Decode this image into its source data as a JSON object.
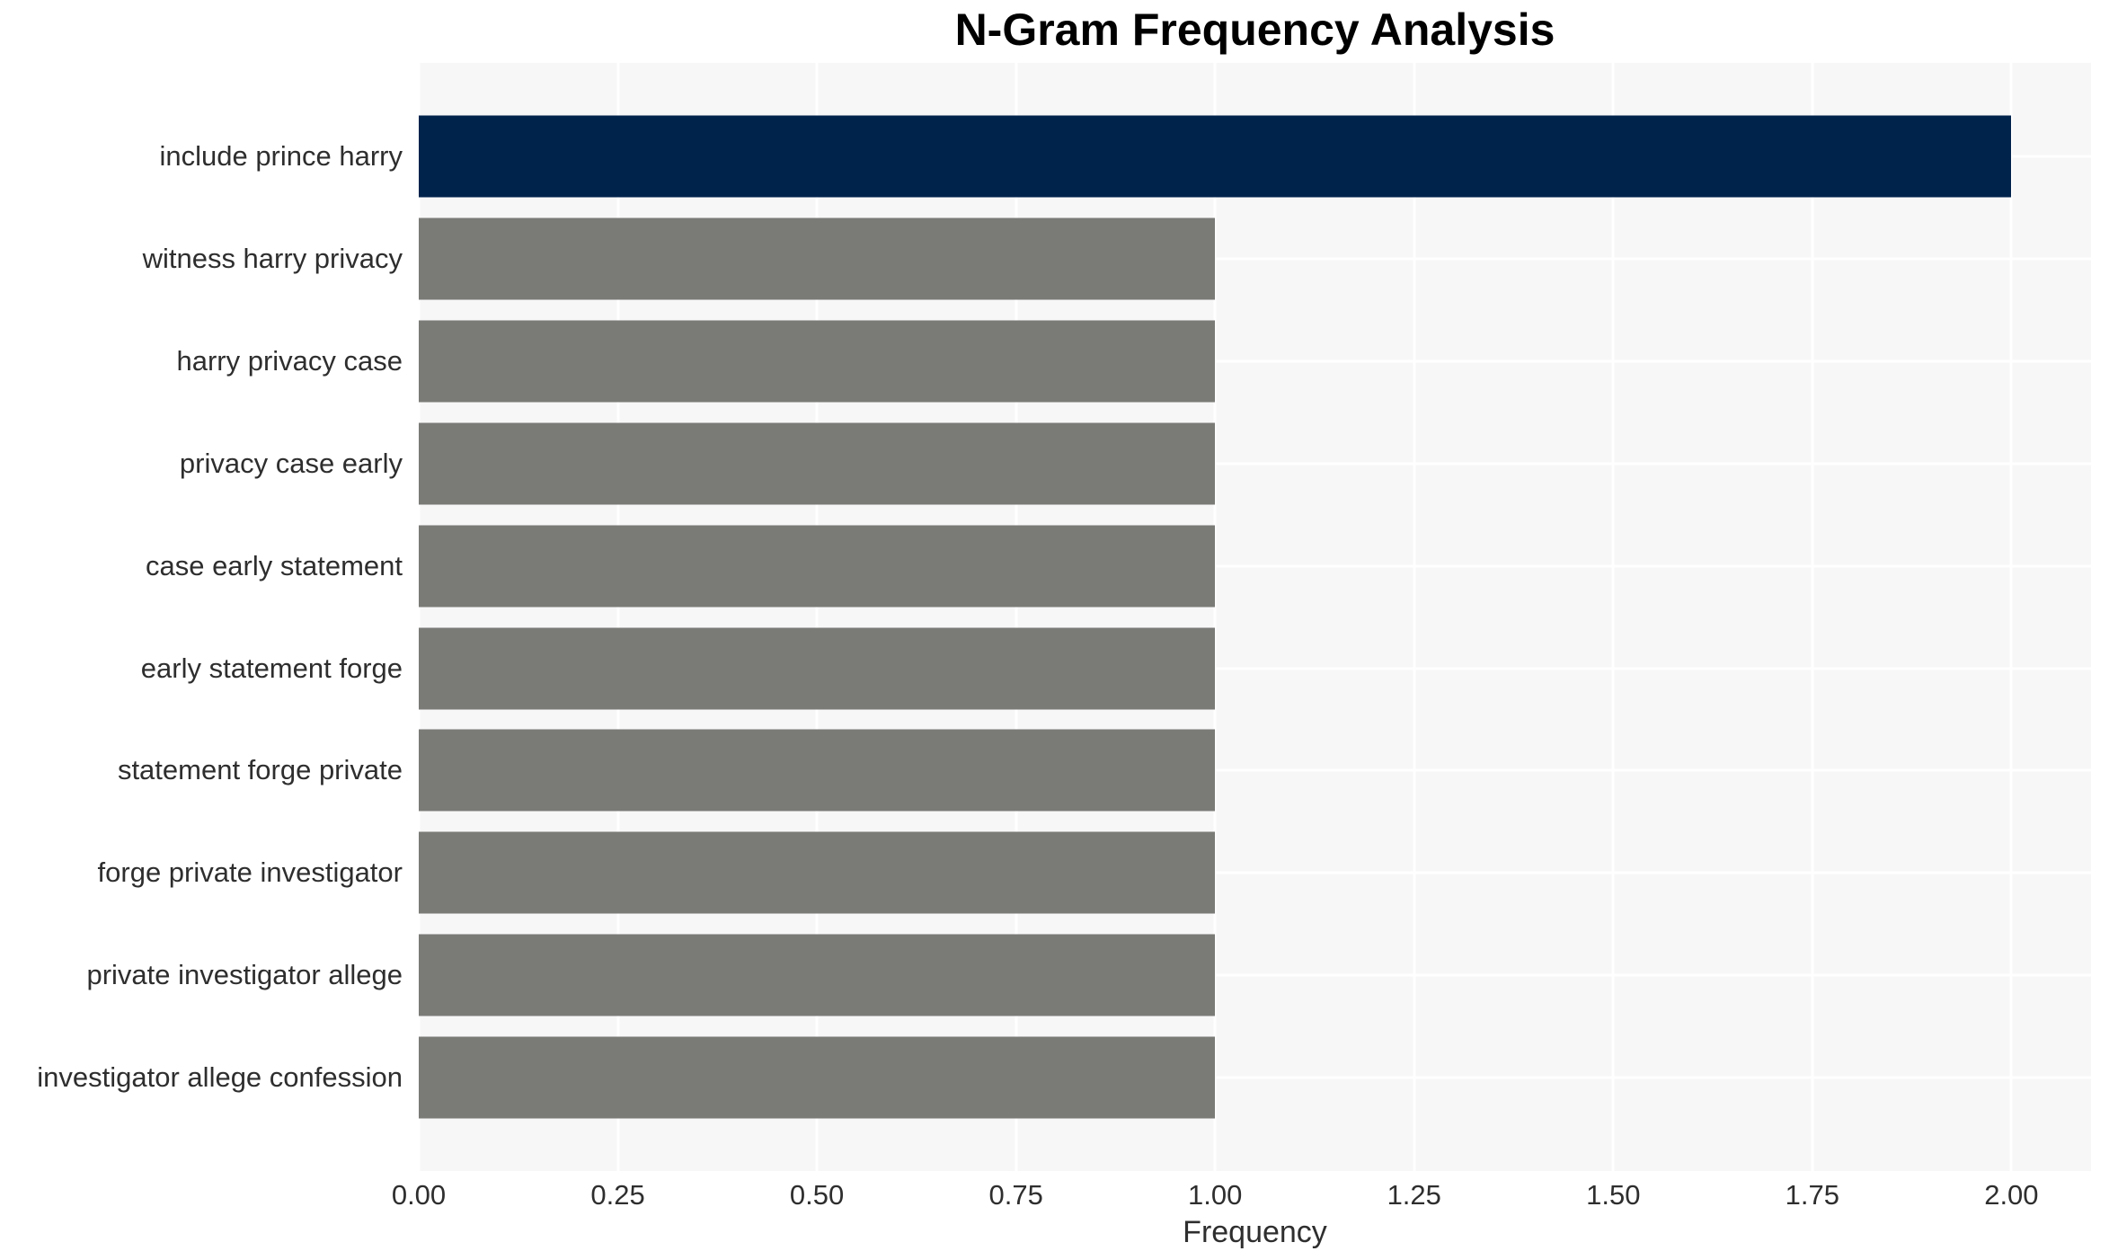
{
  "chart_data": {
    "type": "bar",
    "orientation": "horizontal",
    "title": "N-Gram Frequency Analysis",
    "xlabel": "Frequency",
    "ylabel": "",
    "categories": [
      "include prince harry",
      "witness harry privacy",
      "harry privacy case",
      "privacy case early",
      "case early statement",
      "early statement forge",
      "statement forge private",
      "forge private investigator",
      "private investigator allege",
      "investigator allege confession"
    ],
    "values": [
      2,
      1,
      1,
      1,
      1,
      1,
      1,
      1,
      1,
      1
    ],
    "bar_colors": [
      "#00234c",
      "#7a7a77",
      "#7a7a77",
      "#7a7a77",
      "#7a7a77",
      "#7a7a77",
      "#7a7a77",
      "#7a7a77",
      "#7a7a77",
      "#7a7a77"
    ],
    "x_ticks": [
      "0.00",
      "0.25",
      "0.50",
      "0.75",
      "1.00",
      "1.25",
      "1.50",
      "1.75",
      "2.00"
    ],
    "x_tick_values": [
      0,
      0.25,
      0.5,
      0.75,
      1.0,
      1.25,
      1.5,
      1.75,
      2.0
    ],
    "xlim": [
      0,
      2.1
    ],
    "grid": true,
    "legend": "none",
    "colors": {
      "highlight_bar": "#00234c",
      "default_bar": "#7a7a77",
      "plot_background": "#f7f7f7",
      "gridline": "#ffffff",
      "tick_text": "#2e2e2e",
      "title_text": "#000000"
    }
  }
}
